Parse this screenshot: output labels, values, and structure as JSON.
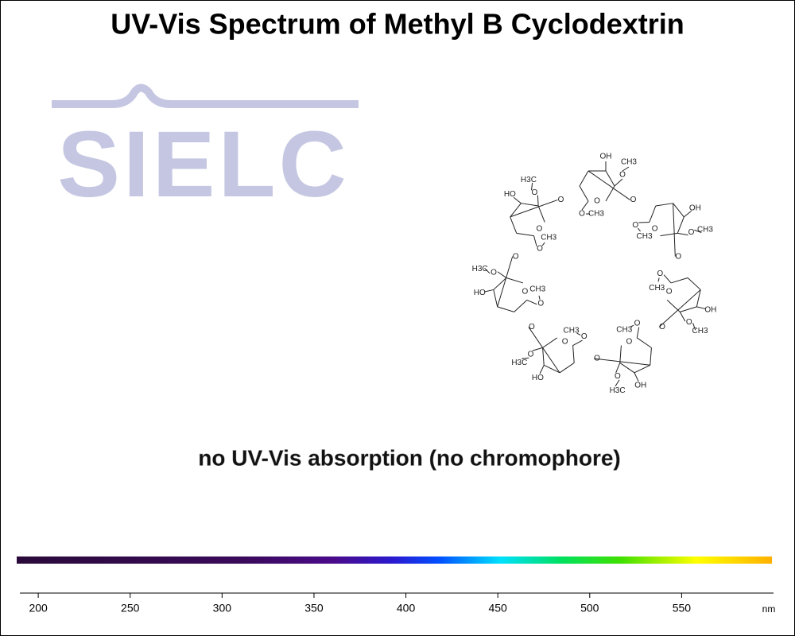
{
  "chart_data": {
    "type": "spectrum",
    "title": "UV-Vis Spectrum of Methyl B Cyclodextrin",
    "logo": "SIELC",
    "annotation": "no UV-Vis absorption (no chromophore)",
    "xlabel": "nm",
    "xlim": [
      190,
      600
    ],
    "xticks": [
      200,
      250,
      300,
      350,
      400,
      450,
      500,
      550
    ],
    "molecule": {
      "units": [
        {
          "ring_o": "O",
          "link_o": "O",
          "hydroxyl": "OH",
          "methoxy": "O",
          "methyl": "CH3",
          "side_o": "O",
          "side_methyl": "CH3"
        },
        {
          "ring_o": "O",
          "link_o": "O",
          "hydroxyl": "OH",
          "methoxy": "O",
          "methyl": "CH3",
          "side_o": "O",
          "side_methyl": "CH3"
        },
        {
          "ring_o": "O",
          "link_o": "O",
          "hydroxyl": "OH",
          "methoxy": "O",
          "methyl": "CH3",
          "side_o": "O",
          "side_methyl": "CH3"
        },
        {
          "ring_o": "O",
          "link_o": "O",
          "hydroxyl": "OH",
          "methoxy": "O",
          "methyl": "H3C",
          "side_o": "O",
          "side_methyl": "CH3"
        },
        {
          "ring_o": "O",
          "link_o": "O",
          "hydroxyl": "HO",
          "methoxy": "O",
          "methyl": "H3C",
          "side_o": "O",
          "side_methyl": "CH3"
        },
        {
          "ring_o": "O",
          "link_o": "O",
          "hydroxyl": "HO",
          "methoxy": "O",
          "methyl": "H3C",
          "side_o": "O",
          "side_methyl": "CH3"
        },
        {
          "ring_o": "O",
          "link_o": "O",
          "hydroxyl": "HO",
          "methoxy": "O",
          "methyl": "H3C",
          "side_o": "O",
          "side_methyl": "CH3"
        }
      ]
    }
  }
}
